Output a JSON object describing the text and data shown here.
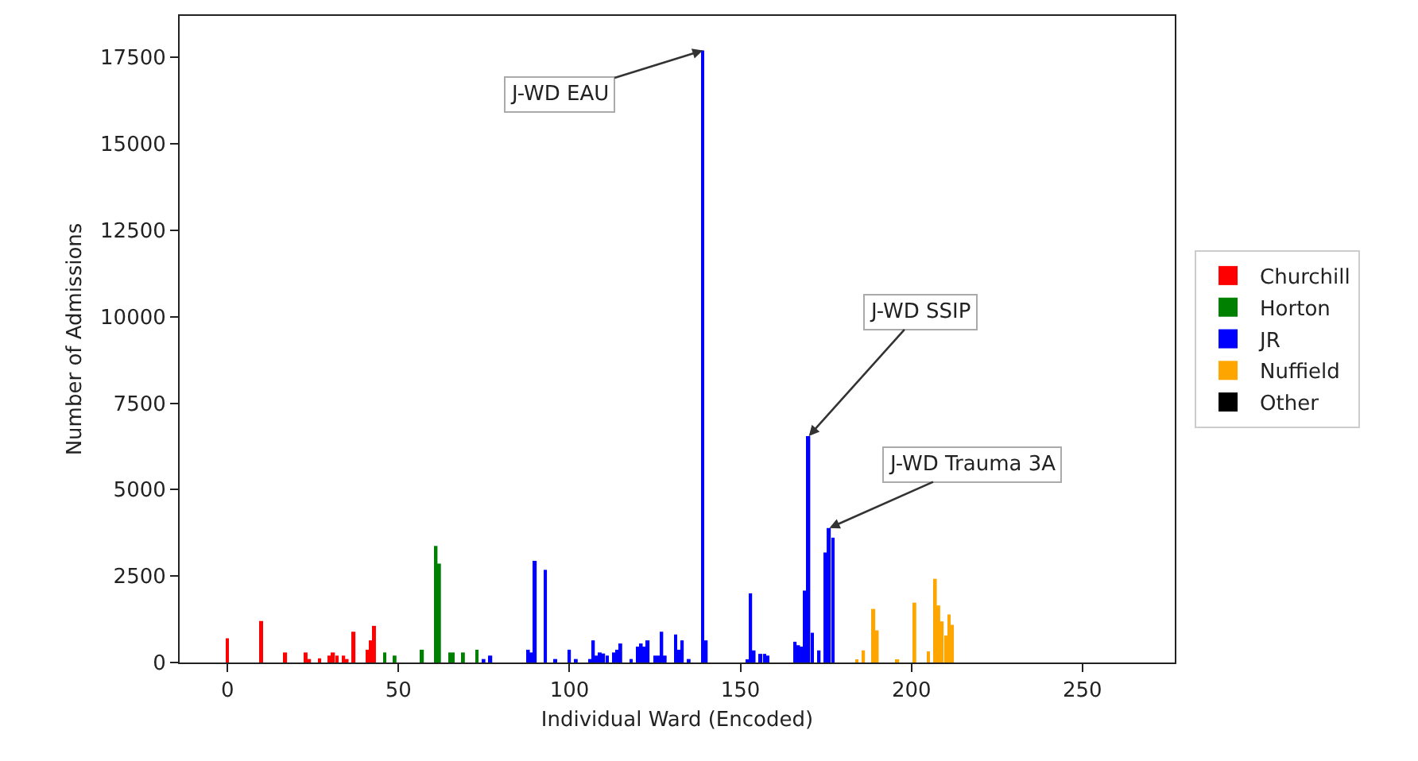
{
  "chart_data": {
    "type": "bar",
    "xlabel": "Individual Ward (Encoded)",
    "ylabel": "Number of Admissions",
    "xlim": [
      -14,
      277
    ],
    "xticks": [
      0,
      50,
      100,
      150,
      200,
      250
    ],
    "ylim": [
      0,
      18700
    ],
    "yticks": [
      0,
      2500,
      5000,
      7500,
      10000,
      12500,
      15000,
      17500
    ],
    "grid": false,
    "legend": "right",
    "series": [
      {
        "name": "Churchill",
        "color": "#ff0000",
        "x": [
          0,
          10,
          17,
          23,
          24,
          27,
          30,
          31,
          32,
          34,
          35,
          37,
          41,
          42,
          43
        ],
        "values": [
          700,
          1200,
          290,
          290,
          100,
          120,
          200,
          290,
          200,
          200,
          100,
          890,
          370,
          640,
          1060
        ]
      },
      {
        "name": "Horton",
        "color": "#008000",
        "x": [
          46,
          49,
          57,
          61,
          62,
          65,
          66,
          69,
          73
        ],
        "values": [
          290,
          200,
          370,
          3370,
          2860,
          290,
          290,
          290,
          370
        ]
      },
      {
        "name": "JR",
        "color": "#0000ff",
        "x": [
          75,
          77,
          88,
          89,
          90,
          93,
          96,
          100,
          102,
          106,
          107,
          108,
          109,
          110,
          111,
          113,
          114,
          115,
          118,
          120,
          121,
          122,
          123,
          125,
          126,
          127,
          128,
          131,
          132,
          133,
          135,
          139,
          140,
          152,
          153,
          154,
          156,
          157,
          158,
          166,
          167,
          168,
          169,
          170,
          171,
          173,
          175,
          176,
          177
        ],
        "values": [
          100,
          200,
          370,
          290,
          2940,
          2680,
          100,
          370,
          100,
          100,
          640,
          200,
          290,
          260,
          200,
          290,
          370,
          550,
          100,
          460,
          550,
          460,
          640,
          200,
          200,
          890,
          200,
          810,
          370,
          640,
          100,
          17700,
          640,
          90,
          2000,
          350,
          250,
          250,
          200,
          600,
          500,
          460,
          2080,
          6550,
          860,
          350,
          3180,
          3890,
          3610
        ]
      },
      {
        "name": "Nuffield",
        "color": "#ffa500",
        "x": [
          184,
          186,
          189,
          190,
          196,
          201,
          205,
          207,
          208,
          209,
          210,
          211,
          212
        ],
        "values": [
          60,
          350,
          1550,
          930,
          90,
          1730,
          320,
          2420,
          1650,
          1190,
          780,
          1390,
          1090
        ]
      },
      {
        "name": "Other",
        "color": "#000000"
      }
    ],
    "annotations": [
      {
        "text": "J-WD EAU",
        "x": 139,
        "y": 17700
      },
      {
        "text": "J-WD SSIP",
        "x": 170,
        "y": 6550
      },
      {
        "text": "J-WD Trauma 3A",
        "x": 176,
        "y": 3890
      }
    ]
  }
}
